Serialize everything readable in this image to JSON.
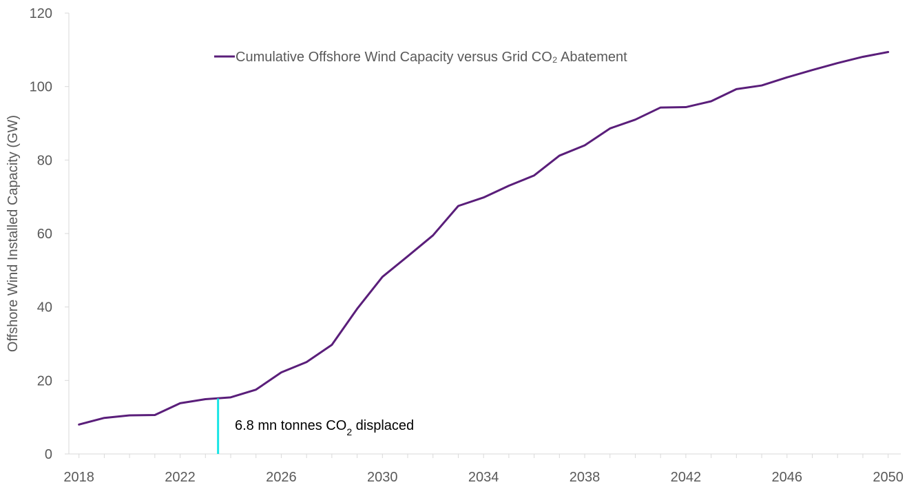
{
  "chart_data": {
    "type": "line",
    "title": "",
    "xlabel": "",
    "ylabel": "Offshore Wind Installed Capacity (GW)",
    "xlim": [
      2017.6,
      2050.5
    ],
    "ylim": [
      0,
      120
    ],
    "y_ticks": [
      0,
      20,
      40,
      60,
      80,
      100,
      120
    ],
    "x_ticks": [
      2018,
      2022,
      2026,
      2030,
      2034,
      2038,
      2042,
      2046,
      2050
    ],
    "grid": false,
    "legend_position": "top-center",
    "series": [
      {
        "name": "Cumulative Offshore Wind Capacity versus Grid CO₂ Abatement",
        "color": "#5a1e7a",
        "x": [
          2018,
          2019,
          2020,
          2021,
          2022,
          2023,
          2024,
          2025,
          2026,
          2027,
          2028,
          2029,
          2030,
          2031,
          2032,
          2033,
          2034,
          2035,
          2036,
          2037,
          2038,
          2039,
          2040,
          2041,
          2042,
          2043,
          2044,
          2045,
          2046,
          2047,
          2048,
          2049,
          2050
        ],
        "values": [
          8.0,
          9.8,
          10.5,
          10.6,
          13.8,
          14.9,
          15.4,
          17.5,
          22.2,
          25.0,
          29.7,
          39.5,
          48.2,
          53.8,
          59.5,
          67.5,
          69.8,
          73.0,
          75.8,
          81.2,
          84.0,
          88.6,
          91.0,
          94.3,
          94.4,
          96.0,
          99.3,
          100.3,
          102.5,
          104.5,
          106.4,
          108.1,
          109.4
        ]
      }
    ],
    "annotation": {
      "label_pre": "6.8 mn tonnes CO",
      "label_sub": "2",
      "label_post": " displaced",
      "x": 2023.5,
      "y_top": 15.1,
      "y_bottom": 0,
      "color": "#19e5e5"
    },
    "axis_color": "#d9d9d9"
  }
}
